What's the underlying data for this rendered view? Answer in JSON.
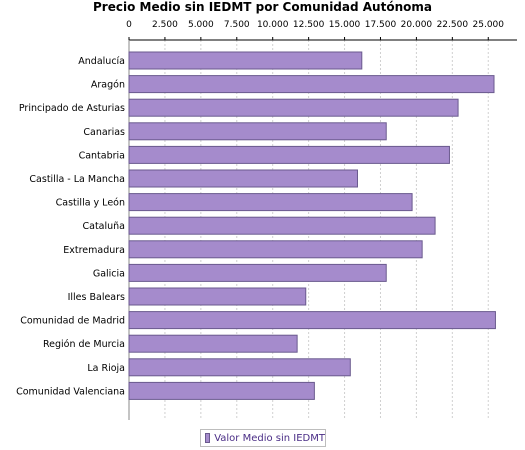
{
  "chart_data": {
    "type": "bar",
    "orientation": "horizontal",
    "title": "Precio Medio sin IEDMT por Comunidad Autónoma",
    "categories": [
      "Andalucía",
      "Aragón",
      "Principado de Asturias",
      "Canarias",
      "Cantabria",
      "Castilla - La Mancha",
      "Castilla y León",
      "Cataluña",
      "Extremadura",
      "Galicia",
      "Illes Balears",
      "Comunidad de Madrid",
      "Región de Murcia",
      "La Rioja",
      "Comunidad Valenciana"
    ],
    "series": [
      {
        "name": "Valor Medio sin IEDMT",
        "values": [
          16200,
          25400,
          22900,
          17900,
          22300,
          15900,
          19700,
          21300,
          20400,
          17900,
          12300,
          25500,
          11700,
          15400,
          12900
        ]
      }
    ],
    "xlim": [
      0,
      27000
    ],
    "x_ticks": [
      "0",
      "2.500",
      "5.000",
      "7.500",
      "10.000",
      "12.500",
      "15.000",
      "17.500",
      "20.000",
      "22.500",
      "25.000"
    ],
    "x_tick_values": [
      0,
      2500,
      5000,
      7500,
      10000,
      12500,
      15000,
      17500,
      20000,
      22500,
      25000
    ],
    "x_axis_position": "top",
    "grid": true,
    "legend_position": "bottom",
    "bar_color": "#a58bcc",
    "bar_border_color": "#6a5a8e",
    "grid_color": "#d0d0d0"
  }
}
